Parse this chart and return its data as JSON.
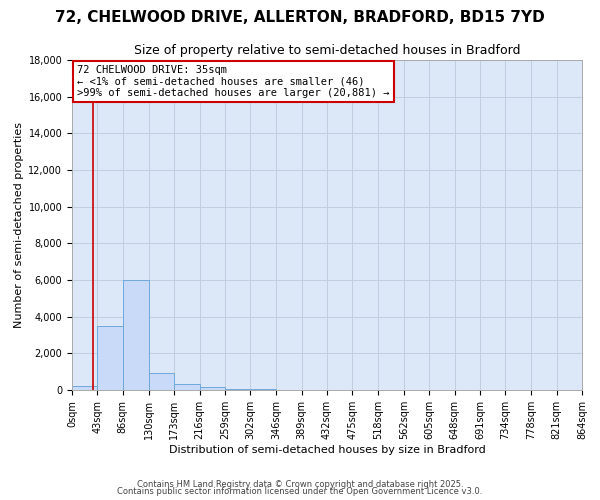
{
  "title": "72, CHELWOOD DRIVE, ALLERTON, BRADFORD, BD15 7YD",
  "subtitle": "Size of property relative to semi-detached houses in Bradford",
  "xlabel": "Distribution of semi-detached houses by size in Bradford",
  "ylabel": "Number of semi-detached properties",
  "bin_edges": [
    0,
    43,
    86,
    130,
    173,
    216,
    259,
    302,
    346,
    389,
    432,
    475,
    518,
    562,
    605,
    648,
    691,
    734,
    778,
    821,
    864
  ],
  "bar_heights": [
    200,
    3500,
    6000,
    950,
    350,
    150,
    50,
    30,
    5,
    2,
    1,
    1,
    0,
    0,
    0,
    0,
    0,
    0,
    0,
    0
  ],
  "bar_color": "#c9daf8",
  "bar_edge_color": "#6fa8dc",
  "property_size": 35,
  "red_line_color": "#cc0000",
  "annotation_box_color": "#ffffff",
  "annotation_box_edge": "#cc0000",
  "annotation_title": "72 CHELWOOD DRIVE: 35sqm",
  "annotation_line1": "← <1% of semi-detached houses are smaller (46)",
  "annotation_line2": ">99% of semi-detached houses are larger (20,881) →",
  "ylim": [
    0,
    18000
  ],
  "yticks": [
    0,
    2000,
    4000,
    6000,
    8000,
    10000,
    12000,
    14000,
    16000,
    18000
  ],
  "footer1": "Contains HM Land Registry data © Crown copyright and database right 2025.",
  "footer2": "Contains public sector information licensed under the Open Government Licence v3.0.",
  "bg_color": "#ffffff",
  "plot_bg_color": "#dce8f8",
  "grid_color": "#c0cfe0",
  "title_fontsize": 11,
  "subtitle_fontsize": 9,
  "tick_label_fontsize": 7,
  "ylabel_fontsize": 8,
  "xlabel_fontsize": 8,
  "annotation_fontsize": 7.5,
  "footer_fontsize": 6
}
